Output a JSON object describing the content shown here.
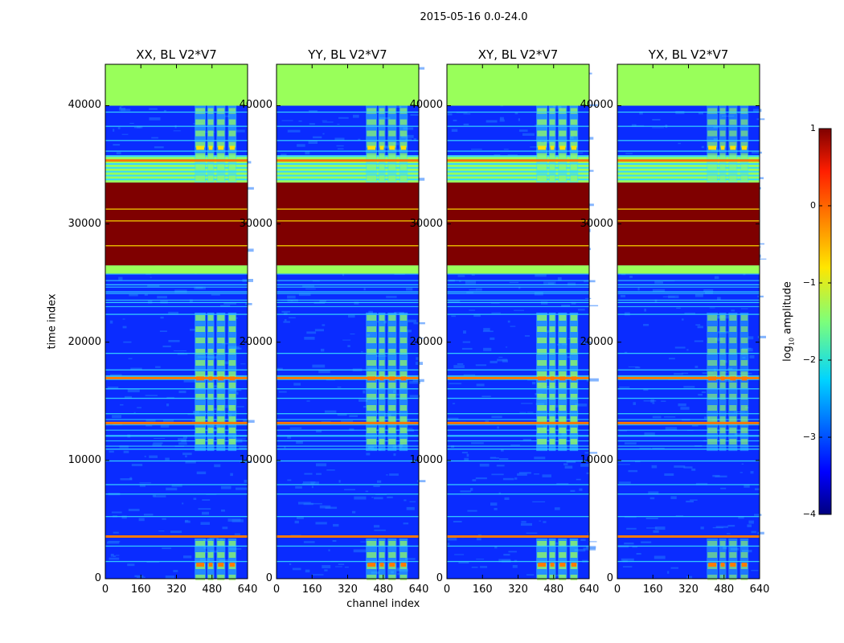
{
  "figure_title": "2015-05-16 0.0-24.0",
  "colors": {
    "noise_low": "#0a2cff",
    "noise_mid": "#1f78ff",
    "cyan": "#36d8ff",
    "flag_green": "#99ff5a",
    "saturated": "#7f0000",
    "orange": "#ff7a00",
    "yellow": "#ffe000",
    "axis": "#000000"
  },
  "chart_data": {
    "type": "heatmap",
    "panels": [
      {
        "title": "XX, BL V2*V7",
        "band_strength": 1.0
      },
      {
        "title": "YY, BL V2*V7",
        "band_strength": 0.95
      },
      {
        "title": "XY, BL V2*V7",
        "band_strength": 1.05
      },
      {
        "title": "YX, BL V2*V7",
        "band_strength": 0.8
      }
    ],
    "xlabel": "channel index",
    "ylabel": "time index",
    "xlim": [
      0,
      640
    ],
    "ylim": [
      0,
      43500
    ],
    "xticks": [
      "0",
      "160",
      "320",
      "480",
      "640"
    ],
    "xtick_values": [
      0,
      160,
      320,
      480,
      640
    ],
    "yticks": [
      "0",
      "10000",
      "20000",
      "30000",
      "40000"
    ],
    "ytick_values": [
      0,
      10000,
      20000,
      30000,
      40000
    ],
    "bright_channels": [
      [
        402,
        452
      ],
      [
        458,
        490
      ],
      [
        500,
        540
      ],
      [
        552,
        590
      ]
    ],
    "time_regions": [
      {
        "from": 0,
        "to": 3400,
        "state": "rfi_blocks"
      },
      {
        "from": 3400,
        "to": 3800,
        "state": "flag_line"
      },
      {
        "from": 3800,
        "to": 10800,
        "state": "noise"
      },
      {
        "from": 10800,
        "to": 13500,
        "state": "striped_noise"
      },
      {
        "from": 13500,
        "to": 17900,
        "state": "noise_bands"
      },
      {
        "from": 16500,
        "to": 17500,
        "state": "hot_row"
      },
      {
        "from": 17900,
        "to": 22500,
        "state": "noise_bands"
      },
      {
        "from": 22500,
        "to": 25800,
        "state": "striped_noise"
      },
      {
        "from": 25800,
        "to": 26500,
        "state": "flagged"
      },
      {
        "from": 26500,
        "to": 33500,
        "state": "saturated"
      },
      {
        "from": 33500,
        "to": 35800,
        "state": "flagged_striped"
      },
      {
        "from": 35800,
        "to": 40000,
        "state": "noise_bands"
      },
      {
        "from": 40000,
        "to": 43500,
        "state": "flagged"
      }
    ],
    "flag_lines": [
      1500,
      2800,
      5300,
      7200,
      8000,
      10000,
      11000,
      12100,
      13200,
      14000,
      15300,
      16100,
      17700,
      19100,
      22400,
      23400,
      24300,
      24900,
      28200,
      30300,
      31300,
      36200,
      37100,
      38300,
      39500
    ],
    "orange_lines": [
      3600,
      13200,
      17000,
      35400
    ],
    "colorbar": {
      "label": "log",
      "label_sub": "10",
      "label_rest": " amplitude",
      "ticks": [
        "1",
        "0",
        "−1",
        "−2",
        "−3",
        "−4"
      ],
      "tick_values": [
        1,
        0,
        -1,
        -2,
        -3,
        -4
      ],
      "range": [
        -4,
        1
      ]
    }
  }
}
